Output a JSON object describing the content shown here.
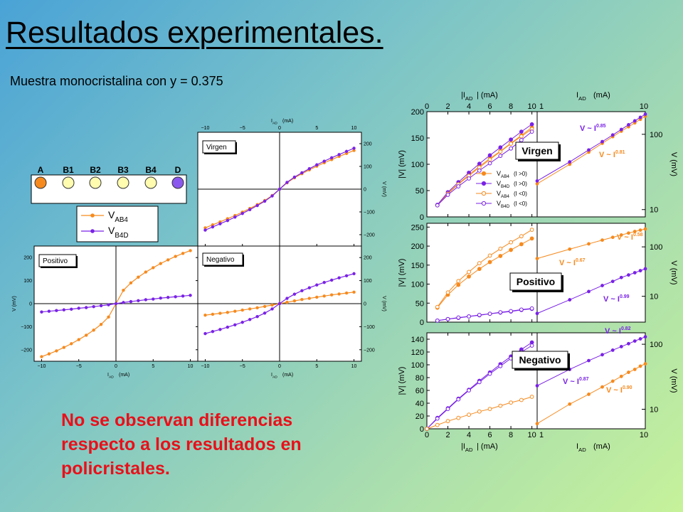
{
  "title": "Resultados experimentales.",
  "subtitle": "Muestra monocristalina con y = 0.375",
  "conclusion": [
    "No se observan diferencias",
    "respecto a los resultados en",
    "policristales."
  ],
  "colors": {
    "orange": "#f68a1e",
    "purple": "#7a22e6",
    "axis": "#000000"
  },
  "contacts": {
    "labels": [
      "A",
      "B1",
      "B2",
      "B3",
      "B4",
      "D"
    ],
    "fills": [
      "#f68a1e",
      "#fffcb0",
      "#fffcb0",
      "#fffcb0",
      "#fffcb0",
      "#8a58ee"
    ]
  },
  "legend_left": [
    {
      "main": "V",
      "sub": "AB4",
      "color": "#f68a1e"
    },
    {
      "main": "V",
      "sub": "B4D",
      "color": "#7a22e6"
    }
  ],
  "legend_right": [
    {
      "main": "V",
      "sub": "AB4",
      "cond": "(I >0)",
      "color": "#f68a1e",
      "filled": true
    },
    {
      "main": "V",
      "sub": "B4D",
      "cond": "(I >0)",
      "color": "#7a22e6",
      "filled": true
    },
    {
      "main": "V",
      "sub": "AB4",
      "cond": "(I <0)",
      "color": "#f68a1e",
      "filled": false
    },
    {
      "main": "V",
      "sub": "B4D",
      "cond": "(I <0)",
      "color": "#7a22e6",
      "filled": false
    }
  ],
  "chart_data": [
    {
      "type": "line",
      "panel": "Virgen",
      "grid": false,
      "xlabel": "I  (mA)",
      "xsub": "AD",
      "ylabel": "V (mV)",
      "xlim": [
        -11,
        11
      ],
      "ylim": [
        -250,
        250
      ],
      "xticks": [
        "−10",
        "−5",
        "0",
        "5",
        "10"
      ],
      "yticks": [
        "200",
        "100",
        "0",
        "−100",
        "−200"
      ],
      "series": [
        {
          "name": "V_AB4",
          "color": "#f68a1e",
          "x": [
            -10,
            -9,
            -8,
            -7,
            -6,
            -5,
            -4,
            -3,
            -2,
            -1,
            0,
            1,
            2,
            3,
            4,
            5,
            6,
            7,
            8,
            9,
            10
          ],
          "y": [
            -170,
            -157,
            -144,
            -130,
            -116,
            -101,
            -85,
            -68,
            -50,
            -28,
            0,
            28,
            50,
            68,
            85,
            101,
            116,
            130,
            144,
            157,
            170
          ]
        },
        {
          "name": "V_B4D",
          "color": "#7a22e6",
          "x": [
            -10,
            -9,
            -8,
            -7,
            -6,
            -5,
            -4,
            -3,
            -2,
            -1,
            0,
            1,
            2,
            3,
            4,
            5,
            6,
            7,
            8,
            9,
            10
          ],
          "y": [
            -180,
            -166,
            -152,
            -138,
            -123,
            -107,
            -90,
            -72,
            -53,
            -30,
            0,
            30,
            53,
            72,
            90,
            107,
            123,
            138,
            152,
            166,
            180
          ]
        }
      ]
    },
    {
      "type": "line",
      "panel": "Positivo",
      "grid": false,
      "xlabel": "I  (mA)",
      "xsub": "AD",
      "ylabel": "V (mV)",
      "xlim": [
        -11,
        11
      ],
      "ylim": [
        -250,
        250
      ],
      "xticks": [
        "−10",
        "−5",
        "0",
        "5",
        "10"
      ],
      "yticks": [
        "200",
        "100",
        "0",
        "−100",
        "−200"
      ],
      "series": [
        {
          "name": "V_AB4",
          "color": "#f68a1e",
          "x": [
            -10,
            -9,
            -8,
            -7,
            -6,
            -5,
            -4,
            -3,
            -2,
            -1,
            0,
            1,
            2,
            3,
            4,
            5,
            6,
            7,
            8,
            9,
            10
          ],
          "y": [
            -230,
            -218,
            -205,
            -190,
            -174,
            -156,
            -137,
            -115,
            -90,
            -58,
            0,
            58,
            90,
            115,
            137,
            156,
            174,
            190,
            205,
            218,
            230
          ]
        },
        {
          "name": "V_B4D",
          "color": "#7a22e6",
          "x": [
            -10,
            -9,
            -8,
            -7,
            -6,
            -5,
            -4,
            -3,
            -2,
            -1,
            0,
            1,
            2,
            3,
            4,
            5,
            6,
            7,
            8,
            9,
            10
          ],
          "y": [
            -36,
            -33,
            -30,
            -27,
            -24,
            -20,
            -17,
            -13,
            -9,
            -5,
            0,
            5,
            9,
            13,
            17,
            20,
            24,
            27,
            30,
            33,
            36
          ]
        }
      ]
    },
    {
      "type": "line",
      "panel": "Negativo",
      "grid": false,
      "xlabel": "I  (mA)",
      "xsub": "AD",
      "ylabel": "V (mV)",
      "xlim": [
        -11,
        11
      ],
      "ylim": [
        -250,
        250
      ],
      "xticks": [
        "−10",
        "−5",
        "0",
        "5",
        "10"
      ],
      "yticks": [
        "200",
        "100",
        "0",
        "−100",
        "−200"
      ],
      "series": [
        {
          "name": "V_AB4",
          "color": "#f68a1e",
          "x": [
            -10,
            -9,
            -8,
            -7,
            -6,
            -5,
            -4,
            -3,
            -2,
            -1,
            0,
            1,
            2,
            3,
            4,
            5,
            6,
            7,
            8,
            9,
            10
          ],
          "y": [
            -50,
            -46,
            -42,
            -38,
            -33,
            -28,
            -23,
            -18,
            -12,
            -6,
            0,
            6,
            12,
            18,
            23,
            28,
            33,
            38,
            42,
            46,
            50
          ]
        },
        {
          "name": "V_B4D",
          "color": "#7a22e6",
          "x": [
            -10,
            -9,
            -8,
            -7,
            -6,
            -5,
            -4,
            -3,
            -2,
            -1,
            0,
            1,
            2,
            3,
            4,
            5,
            6,
            7,
            8,
            9,
            10
          ],
          "y": [
            -130,
            -121,
            -112,
            -102,
            -92,
            -81,
            -69,
            -56,
            -41,
            -23,
            0,
            23,
            41,
            56,
            69,
            81,
            92,
            102,
            112,
            121,
            130
          ]
        }
      ]
    },
    {
      "type": "line",
      "panel": "Virgen",
      "scale": "linear",
      "grid": false,
      "xlabel_top": "|I  | (mA)",
      "xsub": "AD",
      "ylabel": "|V| (mV)",
      "xlim": [
        0,
        10.5
      ],
      "ylim": [
        0,
        200
      ],
      "xticks": [
        0,
        2,
        4,
        6,
        8,
        10
      ],
      "yticks": [
        0,
        50,
        100,
        150,
        200
      ],
      "series": [
        {
          "name": "V_AB4 (I>0)",
          "color": "#f68a1e",
          "filled": true,
          "x": [
            1,
            2,
            3,
            4,
            5,
            6,
            7,
            8,
            9,
            10
          ],
          "y": [
            22,
            45,
            63,
            80,
            96,
            111,
            125,
            140,
            155,
            170
          ]
        },
        {
          "name": "V_B4D (I>0)",
          "color": "#7a22e6",
          "filled": true,
          "x": [
            1,
            2,
            3,
            4,
            5,
            6,
            7,
            8,
            9,
            10
          ],
          "y": [
            23,
            47,
            66,
            84,
            101,
            117,
            132,
            147,
            162,
            176
          ]
        },
        {
          "name": "V_AB4 (I<0)",
          "color": "#f68a1e",
          "filled": false,
          "x": [
            1,
            2,
            3,
            4,
            5,
            6,
            7,
            8,
            9,
            10
          ],
          "y": [
            22,
            44,
            62,
            78,
            94,
            109,
            124,
            139,
            153,
            167
          ]
        },
        {
          "name": "V_B4D (I<0)",
          "color": "#7a22e6",
          "filled": false,
          "x": [
            1,
            2,
            3,
            4,
            5,
            6,
            7,
            8,
            9,
            10
          ],
          "y": [
            22,
            42,
            58,
            73,
            88,
            102,
            116,
            130,
            146,
            162
          ]
        }
      ]
    },
    {
      "type": "line",
      "panel": "Virgen",
      "scale": "log",
      "grid": false,
      "xlabel_top": "I   (mA)",
      "xsub": "AD",
      "ylabel": "V (mV)",
      "xlim": [
        1,
        10
      ],
      "ylim": [
        8,
        200
      ],
      "xticks": [
        1,
        10
      ],
      "yticks": [
        10,
        100
      ],
      "annotations": [
        {
          "text": "V ~ I",
          "exp": "0.85",
          "color": "#7a22e6"
        },
        {
          "text": "V ~ I",
          "exp": "0.81",
          "color": "#f68a1e"
        }
      ],
      "series": [
        {
          "name": "V_AB4",
          "color": "#f68a1e",
          "x": [
            1,
            2,
            3,
            4,
            5,
            6,
            7,
            8,
            9,
            10
          ],
          "y": [
            22,
            40,
            58,
            76,
            93,
            110,
            126,
            142,
            158,
            174
          ]
        },
        {
          "name": "V_B4D",
          "color": "#7a22e6",
          "x": [
            1,
            2,
            3,
            4,
            5,
            6,
            7,
            8,
            9,
            10
          ],
          "y": [
            24,
            43,
            62,
            80,
            98,
            116,
            134,
            151,
            168,
            185
          ]
        }
      ]
    },
    {
      "type": "line",
      "panel": "Positivo",
      "scale": "linear",
      "grid": false,
      "ylabel": "|V| (mV)",
      "xlim": [
        0,
        10.5
      ],
      "ylim": [
        0,
        260
      ],
      "xticks": [
        0,
        2,
        4,
        6,
        8,
        10
      ],
      "yticks": [
        0,
        50,
        100,
        150,
        200,
        250
      ],
      "series": [
        {
          "name": "V_AB4 (I>0)",
          "color": "#f68a1e",
          "filled": true,
          "x": [
            1,
            2,
            3,
            4,
            5,
            6,
            7,
            8,
            9,
            10
          ],
          "y": [
            38,
            72,
            98,
            120,
            140,
            158,
            174,
            190,
            205,
            220
          ]
        },
        {
          "name": "V_AB4 (I<0)",
          "color": "#f68a1e",
          "filled": false,
          "x": [
            1,
            2,
            3,
            4,
            5,
            6,
            7,
            8,
            9,
            10
          ],
          "y": [
            40,
            78,
            108,
            132,
            155,
            175,
            193,
            210,
            226,
            243
          ]
        },
        {
          "name": "V_B4D (I>0)",
          "color": "#7a22e6",
          "filled": true,
          "x": [
            1,
            2,
            3,
            4,
            5,
            6,
            7,
            8,
            9,
            10
          ],
          "y": [
            4,
            8,
            11,
            15,
            18,
            22,
            25,
            28,
            32,
            35
          ]
        },
        {
          "name": "V_B4D (I<0)",
          "color": "#7a22e6",
          "filled": false,
          "x": [
            1,
            2,
            3,
            4,
            5,
            6,
            7,
            8,
            9,
            10
          ],
          "y": [
            4,
            8,
            12,
            15,
            19,
            22,
            26,
            29,
            33,
            36
          ]
        }
      ]
    },
    {
      "type": "line",
      "panel": "Positivo",
      "scale": "log",
      "grid": false,
      "ylabel": "V (mV)",
      "xlim": [
        1,
        10
      ],
      "ylim": [
        3,
        300
      ],
      "xticks": [
        1,
        10
      ],
      "yticks": [
        10,
        100
      ],
      "annotations": [
        {
          "text": "V ~ I",
          "exp": "0.58",
          "color": "#f68a1e"
        },
        {
          "text": "V ~ I",
          "exp": "0.67",
          "color": "#f68a1e"
        },
        {
          "text": "V ~ I",
          "exp": "0.99",
          "color": "#7a22e6"
        }
      ],
      "series": [
        {
          "name": "V_AB4",
          "color": "#f68a1e",
          "x": [
            1,
            2,
            3,
            4,
            5,
            6,
            7,
            8,
            9,
            10
          ],
          "y": [
            58,
            90,
            115,
            137,
            156,
            174,
            190,
            205,
            218,
            230
          ]
        },
        {
          "name": "V_B4D",
          "color": "#7a22e6",
          "x": [
            1,
            2,
            3,
            4,
            5,
            6,
            7,
            8,
            9,
            10
          ],
          "y": [
            4.5,
            8.5,
            12.5,
            16.5,
            20,
            24,
            27,
            30,
            33,
            36
          ]
        }
      ]
    },
    {
      "type": "line",
      "panel": "Negativo",
      "scale": "linear",
      "grid": false,
      "xlabel": "|I  | (mA)",
      "xsub": "AD",
      "ylabel": "|V| (mV)",
      "xlim": [
        0,
        10.5
      ],
      "ylim": [
        0,
        150
      ],
      "xticks": [
        0,
        2,
        4,
        6,
        8,
        10
      ],
      "yticks": [
        0,
        20,
        40,
        60,
        80,
        100,
        120,
        140
      ],
      "series": [
        {
          "name": "V_B4D (I>0)",
          "color": "#7a22e6",
          "filled": true,
          "x": [
            0,
            1,
            2,
            3,
            4,
            5,
            6,
            7,
            8,
            9,
            10
          ],
          "y": [
            0,
            17,
            32,
            47,
            61,
            75,
            88,
            101,
            113,
            124,
            135
          ]
        },
        {
          "name": "V_B4D (I<0)",
          "color": "#7a22e6",
          "filled": false,
          "x": [
            0,
            1,
            2,
            3,
            4,
            5,
            6,
            7,
            8,
            9,
            10
          ],
          "y": [
            0,
            16,
            31,
            46,
            60,
            73,
            86,
            98,
            110,
            120,
            130
          ]
        },
        {
          "name": "V_AB4 (I>0)",
          "color": "#f68a1e",
          "filled": false,
          "x": [
            0,
            1,
            2,
            3,
            4,
            5,
            6,
            7,
            8,
            9,
            10
          ],
          "y": [
            0,
            6,
            12,
            17,
            22,
            27,
            31,
            36,
            41,
            45,
            50
          ]
        }
      ]
    },
    {
      "type": "line",
      "panel": "Negativo",
      "scale": "log",
      "grid": false,
      "xlabel": "I   (mA)",
      "xsub": "AD",
      "ylabel": "V (mV)",
      "xlim": [
        1,
        10
      ],
      "ylim": [
        5,
        150
      ],
      "xticks": [
        1,
        10
      ],
      "yticks": [
        10,
        100
      ],
      "annotations": [
        {
          "text": "V ~ I",
          "exp": "0.82",
          "color": "#7a22e6"
        },
        {
          "text": "V ~ I",
          "exp": "0.87",
          "color": "#7a22e6"
        },
        {
          "text": "V ~ I",
          "exp": "0.90",
          "color": "#f68a1e"
        }
      ],
      "series": [
        {
          "name": "V_B4D",
          "color": "#7a22e6",
          "x": [
            1,
            2,
            3,
            4,
            5,
            6,
            7,
            8,
            9,
            10
          ],
          "y": [
            23,
            41,
            56,
            69,
            81,
            92,
            102,
            112,
            121,
            130
          ]
        },
        {
          "name": "V_AB4",
          "color": "#f68a1e",
          "x": [
            1,
            2,
            3,
            4,
            5,
            6,
            7,
            8,
            9,
            10
          ],
          "y": [
            6,
            12,
            17,
            22,
            27,
            32,
            37,
            41,
            46,
            50
          ]
        }
      ]
    }
  ]
}
